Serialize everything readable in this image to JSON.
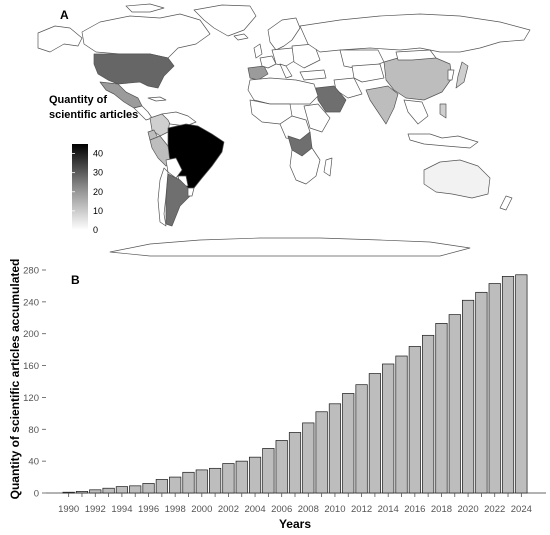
{
  "panel_a": {
    "letter": "A",
    "legend_title_lines": [
      "Quantity of",
      "scientific articles"
    ],
    "legend_ticks": [
      "40",
      "30",
      "20",
      "10",
      "0"
    ],
    "legend_max": 45,
    "colors": {
      "ocean": "#ffffff",
      "zero": "#ffffff",
      "low": "#f2f2f2",
      "high": "#000000",
      "border": "#555555"
    }
  },
  "chart_data": {
    "type": "bar",
    "panel_letter": "B",
    "title": "",
    "xlabel": "Years",
    "ylabel": "Quantity of scientific articles accumulated",
    "ylim": [
      0,
      280
    ],
    "yticks": [
      0,
      40,
      80,
      120,
      160,
      200,
      240,
      280
    ],
    "grid": false,
    "bar_color": "#bdbdbd",
    "categories": [
      "1990",
      "1991",
      "1992",
      "1993",
      "1994",
      "1995",
      "1996",
      "1997",
      "1998",
      "1999",
      "2000",
      "2001",
      "2002",
      "2003",
      "2004",
      "2005",
      "2006",
      "2007",
      "2008",
      "2009",
      "2010",
      "2011",
      "2012",
      "2013",
      "2014",
      "2015",
      "2016",
      "2017",
      "2018",
      "2019",
      "2020",
      "2021",
      "2022",
      "2023",
      "2024"
    ],
    "tick_labels": [
      "1990",
      "",
      "1992",
      "",
      "1994",
      "",
      "1996",
      "",
      "1998",
      "",
      "2000",
      "",
      "2002",
      "",
      "2004",
      "",
      "2006",
      "",
      "2008",
      "",
      "2010",
      "",
      "2012",
      "",
      "2014",
      "",
      "2016",
      "",
      "2018",
      "",
      "2020",
      "",
      "2022",
      "",
      "2024"
    ],
    "values": [
      1,
      2,
      4,
      6,
      8,
      9,
      12,
      17,
      20,
      26,
      29,
      31,
      37,
      40,
      45,
      56,
      66,
      76,
      88,
      102,
      112,
      125,
      136,
      150,
      162,
      172,
      184,
      198,
      213,
      224,
      242,
      252,
      263,
      272,
      274
    ]
  }
}
